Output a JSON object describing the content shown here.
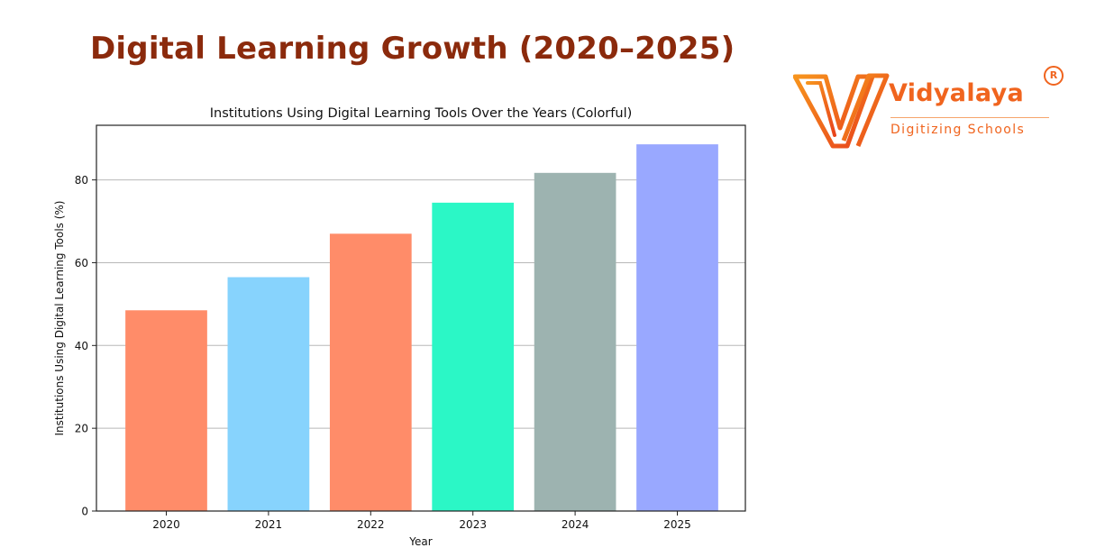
{
  "page": {
    "title": "Digital Learning Growth (2020–2025)"
  },
  "logo": {
    "name": "Vidyalaya",
    "tagline": "Digitizing Schools",
    "registered_mark": "R",
    "color": "#f0641e",
    "accent_color": "#f6a56b"
  },
  "chart_data": {
    "type": "bar",
    "title": "Institutions Using Digital Learning Tools Over the Years (Colorful)",
    "xlabel": "Year",
    "ylabel": "Institutions Using Digital Learning Tools (%)",
    "categories": [
      "2020",
      "2021",
      "2022",
      "2023",
      "2024",
      "2025"
    ],
    "values": [
      48.5,
      56.5,
      67,
      74.5,
      81.7,
      88.6
    ],
    "bar_colors": [
      "#ff8c69",
      "#87d3fd",
      "#ff8c69",
      "#2bf7c6",
      "#9db3b0",
      "#99a8ff"
    ],
    "ylim": [
      0,
      93.2
    ],
    "yticks": [
      0,
      20,
      40,
      60,
      80
    ],
    "ytick_labels": [
      "0",
      "20",
      "40",
      "60",
      "80"
    ],
    "grid": "horizontal",
    "legend": "none"
  }
}
